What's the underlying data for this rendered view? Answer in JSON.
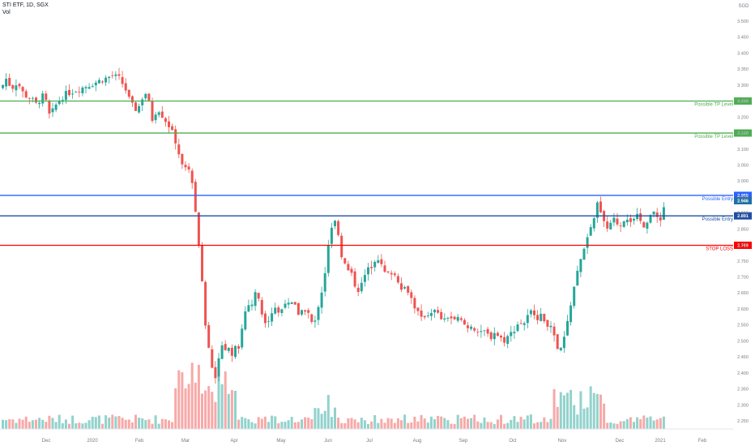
{
  "header": {
    "title": "STI ETF, 1D, SGX",
    "volume_label": "Vol"
  },
  "chart_data": {
    "type": "candlestick",
    "currency": "SGD",
    "y_range": [
      2.2,
      3.55
    ],
    "y_ticks": [
      "3.500",
      "3.450",
      "3.400",
      "3.350",
      "3.300",
      "3.250",
      "3.200",
      "3.150",
      "3.100",
      "3.050",
      "3.000",
      "2.950",
      "2.900",
      "2.850",
      "2.800",
      "2.750",
      "2.700",
      "2.650",
      "2.600",
      "2.550",
      "2.500",
      "2.450",
      "2.400",
      "2.350",
      "2.300",
      "2.250"
    ],
    "x_labels": [
      "Dec",
      "2020",
      "Feb",
      "Mar",
      "Apr",
      "May",
      "Jun",
      "Jul",
      "Aug",
      "Sep",
      "Oct",
      "Nov",
      "Dec",
      "2021",
      "Feb"
    ],
    "levels": [
      {
        "label": "Possible TP Level",
        "badge": "3.250",
        "value": 3.25,
        "color": "#4caf50"
      },
      {
        "label": "Possible TP Level",
        "badge": "3.150",
        "value": 3.15,
        "color": "#4caf50"
      },
      {
        "label": "Possible Entry",
        "badge": "2.955",
        "value": 2.955,
        "color": "#2962ff"
      },
      {
        "label": "Possible Entry",
        "badge": "2.891",
        "value": 2.891,
        "color": "#1e4fa3"
      },
      {
        "label": "STOP LOSS",
        "badge": "2.799",
        "value": 2.799,
        "color": "#ff0000"
      }
    ],
    "last_price": {
      "badge": "2.946",
      "value": 2.946,
      "color": "#1e6fa8"
    },
    "price_path": [
      [
        0,
        3.28
      ],
      [
        8,
        3.32
      ],
      [
        15,
        3.29
      ],
      [
        22,
        3.31
      ],
      [
        30,
        3.27
      ],
      [
        38,
        3.26
      ],
      [
        45,
        3.24
      ],
      [
        55,
        3.27
      ],
      [
        62,
        3.2
      ],
      [
        70,
        3.24
      ],
      [
        80,
        3.27
      ],
      [
        90,
        3.28
      ],
      [
        100,
        3.29
      ],
      [
        110,
        3.3
      ],
      [
        120,
        3.31
      ],
      [
        130,
        3.32
      ],
      [
        140,
        3.33
      ],
      [
        148,
        3.32
      ],
      [
        155,
        3.29
      ],
      [
        162,
        3.24
      ],
      [
        170,
        3.22
      ],
      [
        176,
        3.26
      ],
      [
        182,
        3.28
      ],
      [
        188,
        3.19
      ],
      [
        195,
        3.23
      ],
      [
        202,
        3.2
      ],
      [
        210,
        3.17
      ],
      [
        218,
        3.12
      ],
      [
        224,
        3.06
      ],
      [
        232,
        3.04
      ],
      [
        238,
        3.0
      ],
      [
        242,
        2.9
      ],
      [
        246,
        2.8
      ],
      [
        250,
        2.68
      ],
      [
        254,
        2.55
      ],
      [
        258,
        2.48
      ],
      [
        262,
        2.42
      ],
      [
        266,
        2.38
      ],
      [
        270,
        2.43
      ],
      [
        274,
        2.5
      ],
      [
        278,
        2.47
      ],
      [
        282,
        2.5
      ],
      [
        286,
        2.44
      ],
      [
        290,
        2.5
      ],
      [
        294,
        2.47
      ],
      [
        298,
        2.52
      ],
      [
        302,
        2.58
      ],
      [
        306,
        2.62
      ],
      [
        310,
        2.6
      ],
      [
        314,
        2.64
      ],
      [
        318,
        2.66
      ],
      [
        322,
        2.6
      ],
      [
        326,
        2.57
      ],
      [
        330,
        2.56
      ],
      [
        334,
        2.58
      ],
      [
        338,
        2.6
      ],
      [
        342,
        2.61
      ],
      [
        346,
        2.57
      ],
      [
        350,
        2.62
      ],
      [
        354,
        2.63
      ],
      [
        358,
        2.6
      ],
      [
        362,
        2.62
      ],
      [
        366,
        2.6
      ],
      [
        370,
        2.58
      ],
      [
        374,
        2.6
      ],
      [
        378,
        2.6
      ],
      [
        382,
        2.58
      ],
      [
        386,
        2.55
      ],
      [
        390,
        2.56
      ],
      [
        394,
        2.62
      ],
      [
        398,
        2.66
      ],
      [
        402,
        2.72
      ],
      [
        406,
        2.8
      ],
      [
        410,
        2.85
      ],
      [
        414,
        2.87
      ],
      [
        418,
        2.84
      ],
      [
        422,
        2.77
      ],
      [
        426,
        2.74
      ],
      [
        430,
        2.72
      ],
      [
        434,
        2.71
      ],
      [
        438,
        2.68
      ],
      [
        442,
        2.66
      ],
      [
        446,
        2.67
      ],
      [
        450,
        2.7
      ],
      [
        454,
        2.72
      ],
      [
        458,
        2.73
      ],
      [
        462,
        2.75
      ],
      [
        466,
        2.77
      ],
      [
        470,
        2.74
      ],
      [
        474,
        2.72
      ],
      [
        478,
        2.7
      ],
      [
        482,
        2.72
      ],
      [
        486,
        2.71
      ],
      [
        490,
        2.7
      ],
      [
        494,
        2.68
      ],
      [
        498,
        2.66
      ],
      [
        502,
        2.67
      ],
      [
        506,
        2.65
      ],
      [
        510,
        2.62
      ],
      [
        514,
        2.6
      ],
      [
        518,
        2.58
      ],
      [
        522,
        2.56
      ],
      [
        526,
        2.59
      ],
      [
        530,
        2.58
      ],
      [
        534,
        2.6
      ],
      [
        538,
        2.59
      ],
      [
        542,
        2.58
      ],
      [
        546,
        2.57
      ],
      [
        550,
        2.56
      ],
      [
        554,
        2.58
      ],
      [
        558,
        2.57
      ],
      [
        562,
        2.56
      ],
      [
        566,
        2.57
      ],
      [
        570,
        2.56
      ],
      [
        574,
        2.55
      ],
      [
        578,
        2.54
      ],
      [
        582,
        2.55
      ],
      [
        586,
        2.54
      ],
      [
        590,
        2.53
      ],
      [
        594,
        2.52
      ],
      [
        598,
        2.53
      ],
      [
        602,
        2.52
      ],
      [
        606,
        2.51
      ],
      [
        610,
        2.53
      ],
      [
        614,
        2.52
      ],
      [
        618,
        2.51
      ],
      [
        622,
        2.5
      ],
      [
        626,
        2.51
      ],
      [
        630,
        2.52
      ],
      [
        634,
        2.53
      ],
      [
        638,
        2.55
      ],
      [
        642,
        2.56
      ],
      [
        646,
        2.55
      ],
      [
        650,
        2.57
      ],
      [
        654,
        2.58
      ],
      [
        658,
        2.6
      ],
      [
        662,
        2.58
      ],
      [
        666,
        2.57
      ],
      [
        670,
        2.58
      ],
      [
        674,
        2.56
      ],
      [
        678,
        2.55
      ],
      [
        682,
        2.53
      ],
      [
        686,
        2.5
      ],
      [
        690,
        2.46
      ],
      [
        694,
        2.48
      ],
      [
        698,
        2.52
      ],
      [
        702,
        2.57
      ],
      [
        706,
        2.63
      ],
      [
        710,
        2.68
      ],
      [
        714,
        2.72
      ],
      [
        718,
        2.76
      ],
      [
        722,
        2.8
      ],
      [
        726,
        2.82
      ],
      [
        730,
        2.85
      ],
      [
        734,
        2.88
      ],
      [
        738,
        2.93
      ],
      [
        742,
        2.91
      ],
      [
        746,
        2.88
      ],
      [
        750,
        2.85
      ],
      [
        754,
        2.86
      ],
      [
        758,
        2.88
      ],
      [
        762,
        2.87
      ],
      [
        766,
        2.86
      ],
      [
        770,
        2.88
      ],
      [
        774,
        2.89
      ],
      [
        778,
        2.88
      ],
      [
        782,
        2.87
      ],
      [
        786,
        2.89
      ],
      [
        790,
        2.88
      ],
      [
        794,
        2.86
      ],
      [
        798,
        2.87
      ],
      [
        802,
        2.89
      ],
      [
        806,
        2.9
      ],
      [
        810,
        2.89
      ],
      [
        814,
        2.88
      ],
      [
        818,
        2.89
      ],
      [
        822,
        2.95
      ]
    ]
  }
}
